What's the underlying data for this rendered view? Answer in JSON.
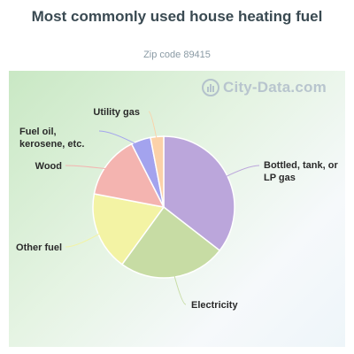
{
  "title": "Most commonly used house heating fuel",
  "subtitle": "Zip code 89415",
  "watermark": "City-Data.com",
  "chart_data": {
    "type": "pie",
    "title": "Most commonly used house heating fuel",
    "subtitle": "Zip code 89415",
    "slices": [
      {
        "label": "Bottled, tank, or LP gas",
        "value": 35.5,
        "color": "#bba6db"
      },
      {
        "label": "Electricity",
        "value": 24.5,
        "color": "#c7dca4"
      },
      {
        "label": "Other fuel",
        "value": 18.0,
        "color": "#f3f3a4"
      },
      {
        "label": "Wood",
        "value": 14.5,
        "color": "#f4b4b0"
      },
      {
        "label": "Fuel oil, kerosene, etc.",
        "value": 4.5,
        "color": "#a3a3ee"
      },
      {
        "label": "Utility gas",
        "value": 3.0,
        "color": "#fbd1a8"
      }
    ]
  }
}
